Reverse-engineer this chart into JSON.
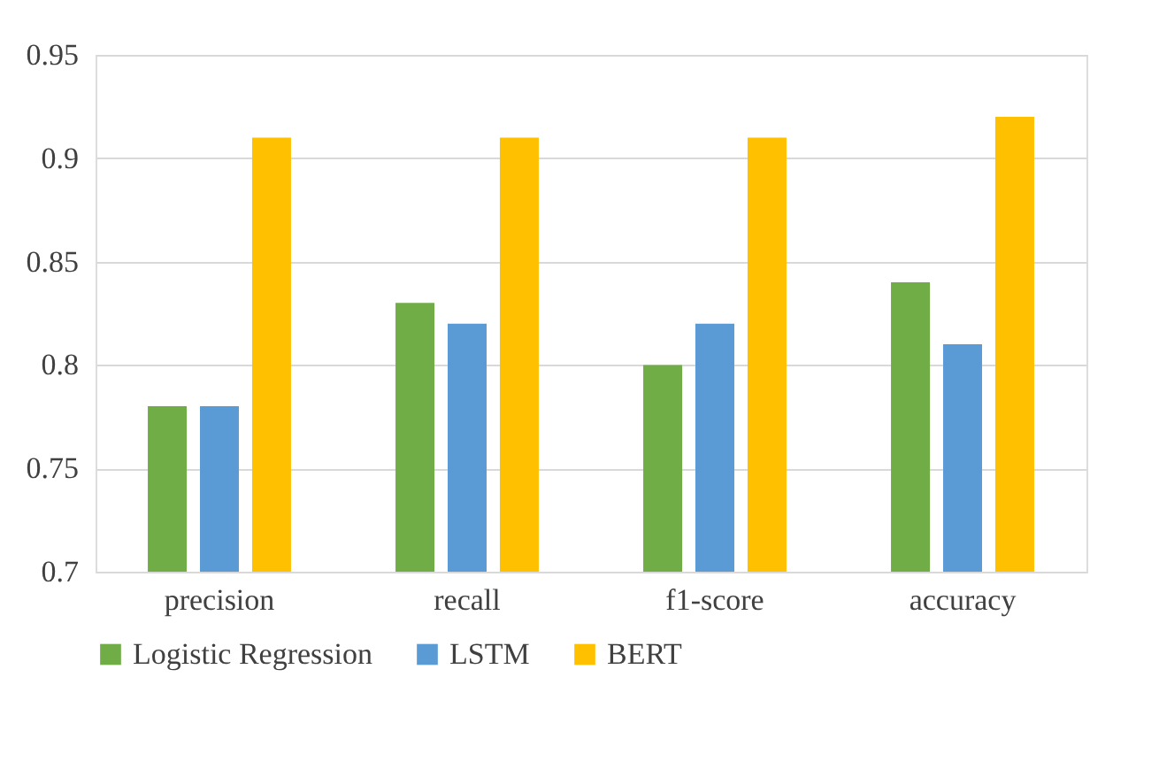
{
  "chart_data": {
    "type": "bar",
    "categories": [
      "precision",
      "recall",
      "f1-score",
      "accuracy"
    ],
    "series": [
      {
        "name": "Logistic Regression",
        "color": "#70ad47",
        "values": [
          0.78,
          0.83,
          0.8,
          0.84
        ]
      },
      {
        "name": "LSTM",
        "color": "#5b9bd5",
        "values": [
          0.78,
          0.82,
          0.82,
          0.81
        ]
      },
      {
        "name": "BERT",
        "color": "#ffc000",
        "values": [
          0.91,
          0.91,
          0.91,
          0.92
        ]
      }
    ],
    "ylim": [
      0.7,
      0.95
    ],
    "yticks": [
      0.7,
      0.75,
      0.8,
      0.85,
      0.9,
      0.95
    ],
    "grid": "y",
    "legend": "bottom"
  }
}
